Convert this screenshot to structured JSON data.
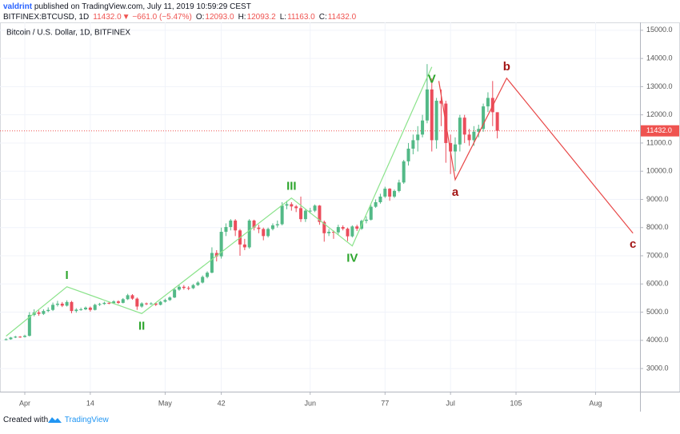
{
  "header": {
    "author": "valdrint",
    "published": "published on TradingView.com, July 11, 2019 10:59:29 CEST",
    "quote": [
      {
        "text": "BITFINEX:BTCUSD, 1D",
        "color": "#131722"
      },
      {
        "text": "11432.0",
        "color": "#ef5350"
      },
      {
        "text": "▼ −661.0 (−5.47%)",
        "color": "#ef5350"
      },
      {
        "text": "O:",
        "color": "#131722"
      },
      {
        "text": "12093.0",
        "color": "#ef5350"
      },
      {
        "text": "H:",
        "color": "#131722"
      },
      {
        "text": "12093.2",
        "color": "#ef5350"
      },
      {
        "text": "L:",
        "color": "#131722"
      },
      {
        "text": "11163.0",
        "color": "#ef5350"
      },
      {
        "text": "C:",
        "color": "#131722"
      },
      {
        "text": "11432.0",
        "color": "#ef5350"
      }
    ]
  },
  "chart_data": {
    "type": "candlestick",
    "legend": "Bitcoin / U.S. Dollar, 1D, BITFINEX",
    "up_color": "#53b987",
    "down_color": "#eb4d5c",
    "x": [
      -4,
      -3,
      -2,
      -1,
      0,
      1,
      2,
      3,
      4,
      5,
      6,
      7,
      8,
      9,
      10,
      11,
      12,
      13,
      14,
      15,
      16,
      17,
      18,
      19,
      20,
      21,
      22,
      23,
      24,
      25,
      26,
      27,
      28,
      29,
      30,
      31,
      32,
      33,
      34,
      35,
      36,
      37,
      38,
      39,
      40,
      41,
      42,
      43,
      44,
      45,
      46,
      47,
      48,
      49,
      50,
      51,
      52,
      53,
      54,
      55,
      56,
      57,
      58,
      59,
      60,
      61,
      62,
      63,
      64,
      65,
      66,
      67,
      68,
      69,
      70,
      71,
      72,
      73,
      74,
      75,
      76,
      77,
      78,
      79,
      80,
      81,
      82,
      83,
      84,
      85,
      86,
      87,
      88,
      89,
      90,
      91,
      92,
      93,
      94,
      95,
      96,
      97,
      98,
      99,
      100,
      101
    ],
    "open": [
      4020,
      4040,
      4100,
      4130,
      4120,
      4160,
      4900,
      4990,
      4940,
      5040,
      5080,
      5260,
      5300,
      5230,
      5360,
      5040,
      5090,
      5100,
      5160,
      5080,
      5260,
      5290,
      5330,
      5320,
      5380,
      5330,
      5460,
      5600,
      5480,
      5200,
      5310,
      5290,
      5310,
      5260,
      5370,
      5430,
      5520,
      5800,
      5900,
      5860,
      5850,
      5960,
      6050,
      6250,
      6400,
      7100,
      6980,
      7850,
      8020,
      8250,
      7900,
      7400,
      7300,
      8250,
      8000,
      7950,
      7700,
      7950,
      8080,
      8120,
      8780,
      8830,
      8750,
      8690,
      8300,
      8600,
      8600,
      8780,
      8200,
      7800,
      7850,
      7830,
      8020,
      7960,
      7690,
      8040,
      7960,
      8240,
      8280,
      8740,
      8900,
      9100,
      9380,
      9100,
      9300,
      9600,
      10350,
      10800,
      11100,
      11300,
      11800,
      12900,
      11100,
      12500,
      12400,
      11000,
      10700,
      10950,
      11900,
      11300,
      11100,
      11400,
      11500,
      12300,
      12600,
      12093
    ],
    "high": [
      4070,
      4120,
      4160,
      4150,
      4200,
      5000,
      5100,
      5060,
      5100,
      5170,
      5340,
      5400,
      5360,
      5420,
      5400,
      5140,
      5160,
      5200,
      5200,
      5300,
      5330,
      5370,
      5370,
      5420,
      5420,
      5500,
      5650,
      5640,
      5520,
      5350,
      5340,
      5350,
      5340,
      5400,
      5480,
      5560,
      5850,
      5960,
      5960,
      5920,
      6000,
      6100,
      6300,
      6450,
      7300,
      7200,
      8000,
      8150,
      8300,
      8300,
      7950,
      7600,
      8300,
      8280,
      8100,
      8000,
      8000,
      8150,
      8250,
      8900,
      8950,
      8900,
      8800,
      9100,
      8650,
      8700,
      8820,
      8800,
      8250,
      7950,
      7900,
      8100,
      8080,
      8000,
      8080,
      8100,
      8280,
      8400,
      8800,
      9000,
      9200,
      9450,
      9400,
      9350,
      9700,
      10400,
      11000,
      11300,
      11600,
      12000,
      13800,
      13300,
      12600,
      12900,
      12500,
      11300,
      11200,
      12000,
      12000,
      11500,
      11600,
      11650,
      12400,
      12800,
      13200,
      12093.2
    ],
    "low": [
      4000,
      4020,
      4080,
      4090,
      4100,
      4140,
      4850,
      4870,
      4900,
      5000,
      5040,
      5200,
      5180,
      5200,
      4960,
      4980,
      5050,
      5070,
      5020,
      5060,
      5220,
      5260,
      5280,
      5290,
      5290,
      5310,
      5430,
      5440,
      5080,
      5160,
      5250,
      5260,
      5220,
      5240,
      5340,
      5400,
      5500,
      5760,
      5800,
      5780,
      5820,
      5930,
      6020,
      6200,
      6380,
      6800,
      6900,
      7700,
      7900,
      7700,
      7000,
      7200,
      7250,
      7900,
      7800,
      7550,
      7650,
      7900,
      8000,
      8080,
      8650,
      8600,
      8550,
      8200,
      8200,
      8500,
      8550,
      8100,
      7500,
      7700,
      7600,
      7750,
      7900,
      7520,
      7650,
      7880,
      7920,
      8150,
      8250,
      8700,
      8850,
      9050,
      8950,
      9050,
      9250,
      9550,
      10200,
      10600,
      10700,
      11200,
      11700,
      10700,
      10800,
      11600,
      10300,
      9900,
      10000,
      10700,
      11000,
      10900,
      10900,
      11200,
      11400,
      12100,
      11600,
      11163
    ],
    "close": [
      4040,
      4100,
      4130,
      4120,
      4160,
      4900,
      4990,
      4940,
      5040,
      5080,
      5260,
      5300,
      5230,
      5360,
      5040,
      5090,
      5100,
      5160,
      5080,
      5260,
      5290,
      5330,
      5320,
      5380,
      5330,
      5460,
      5600,
      5480,
      5200,
      5310,
      5290,
      5310,
      5260,
      5370,
      5430,
      5520,
      5800,
      5900,
      5860,
      5850,
      5960,
      6050,
      6250,
      6400,
      7100,
      6980,
      7850,
      8020,
      8250,
      7900,
      7400,
      7300,
      8250,
      8000,
      7950,
      7700,
      7950,
      8080,
      8120,
      8780,
      8830,
      8750,
      8690,
      8300,
      8600,
      8600,
      8780,
      8200,
      7800,
      7850,
      7830,
      8020,
      7960,
      7690,
      8040,
      7960,
      8240,
      8280,
      8740,
      8900,
      9100,
      9380,
      9100,
      9300,
      9600,
      10350,
      10800,
      11100,
      11300,
      11800,
      12900,
      11100,
      12500,
      12400,
      11000,
      10700,
      10950,
      11900,
      11300,
      11100,
      11400,
      11500,
      12300,
      12600,
      12093,
      11432
    ],
    "xlim": [
      -5.3,
      131.5
    ],
    "ylim": [
      2180,
      15280
    ],
    "xticks": [
      {
        "value": 0,
        "label": "Apr"
      },
      14,
      {
        "value": 30,
        "label": "May"
      },
      42,
      {
        "value": 61,
        "label": "Jun"
      },
      77,
      {
        "value": 91,
        "label": "Jul"
      },
      105,
      {
        "value": 122,
        "label": "Aug"
      }
    ],
    "yticks": [
      {
        "value": 3000,
        "label": "3000.0"
      },
      {
        "value": 4000,
        "label": "4000.0"
      },
      {
        "value": 5000,
        "label": "5000.0"
      },
      {
        "value": 6000,
        "label": "6000.0"
      },
      {
        "value": 7000,
        "label": "7000.0"
      },
      {
        "value": 8000,
        "label": "8000.0"
      },
      {
        "value": 9000,
        "label": "9000.0"
      },
      {
        "value": 10000,
        "label": "10000.0"
      },
      {
        "value": 11000,
        "label": "11000.0"
      },
      {
        "value": 12000,
        "label": "12000.0"
      },
      {
        "value": 13000,
        "label": "13000.0"
      },
      {
        "value": 14000,
        "label": "14000.0"
      },
      {
        "value": 15000,
        "label": "15000.0"
      }
    ],
    "grid": true,
    "last_price": {
      "value": 11432,
      "label": "11432.0",
      "color": "#ef5350"
    },
    "waves": [
      {
        "line_color": "#8be38b",
        "label_color": "#2ea62e",
        "x": [
          -4,
          9,
          25,
          57,
          70,
          87
        ],
        "y": [
          4150,
          5900,
          4950,
          9050,
          7350,
          13700
        ],
        "labels": [
          null,
          "I",
          "II",
          "III",
          "IV",
          "V"
        ]
      },
      {
        "line_color": "#e84848",
        "label_color": "#a31515",
        "x": [
          88.5,
          92,
          103,
          130
        ],
        "y": [
          13200,
          9700,
          13300,
          7800
        ],
        "labels": [
          null,
          "a",
          "b",
          "c"
        ]
      }
    ]
  },
  "footer": {
    "created": "Created with",
    "brand": "TradingView"
  }
}
